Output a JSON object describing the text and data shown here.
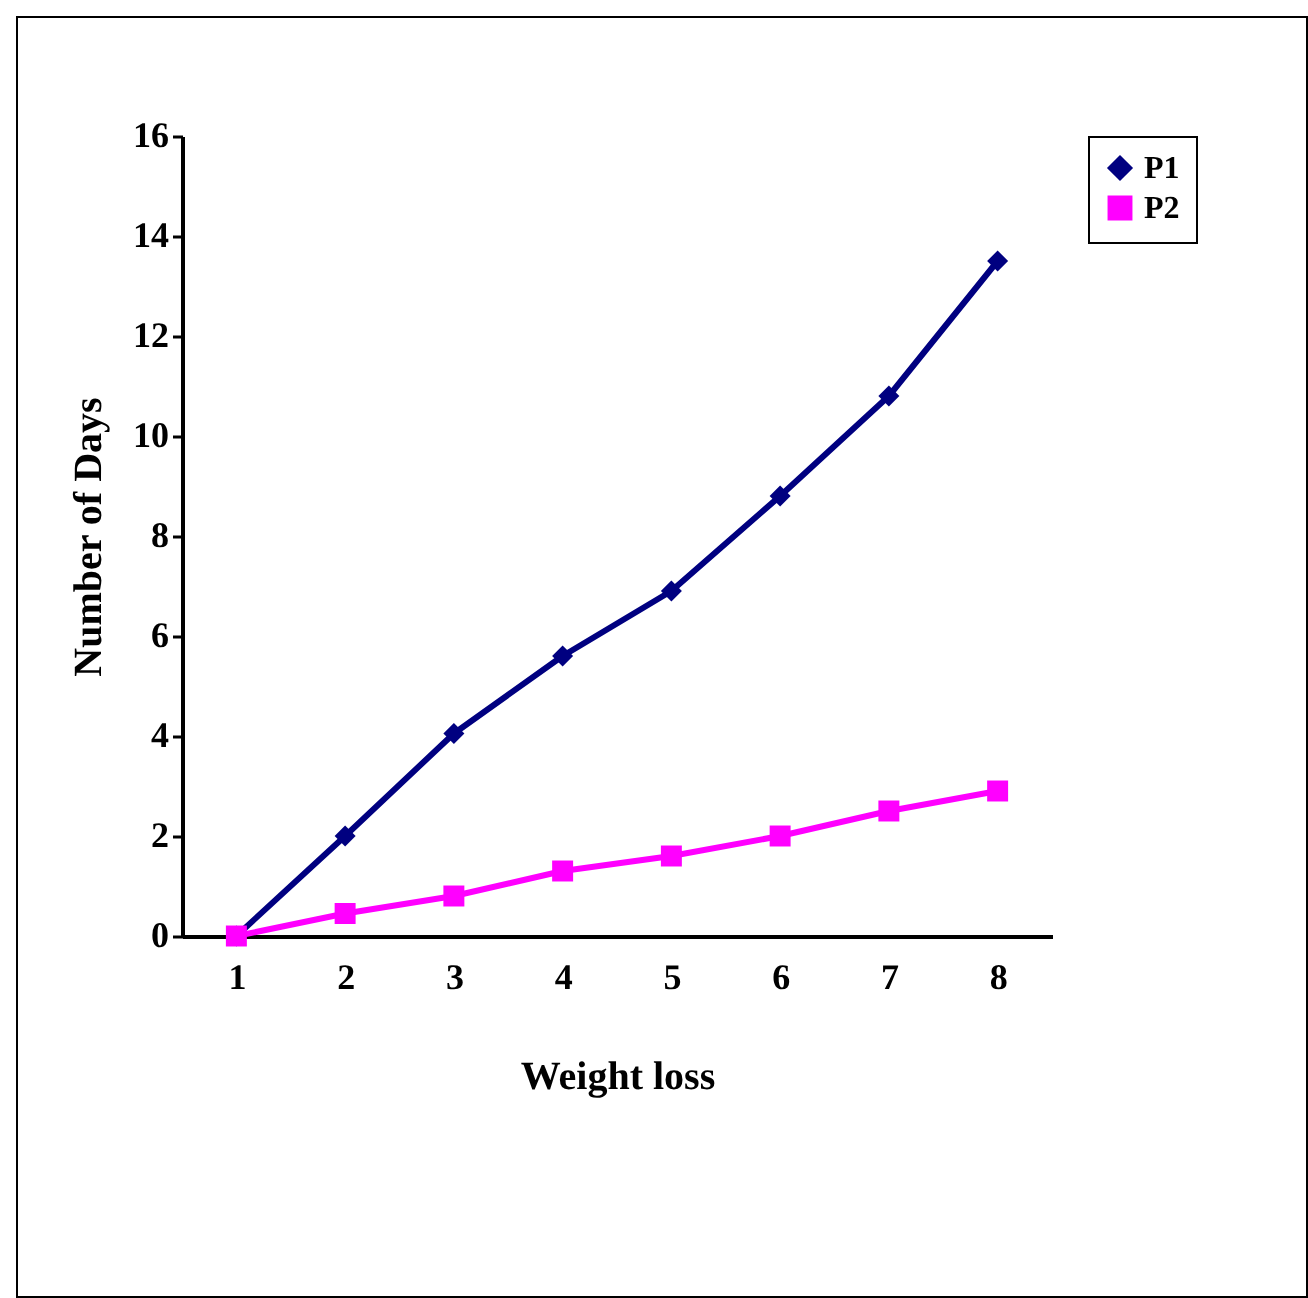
{
  "chart_data": {
    "type": "line",
    "xlabel": "Weight loss",
    "ylabel": "Number of Days",
    "categories": [
      "1",
      "2",
      "3",
      "4",
      "5",
      "6",
      "7",
      "8"
    ],
    "series": [
      {
        "name": "P1",
        "color": "#000080",
        "marker": "diamond",
        "values": [
          0,
          2,
          4.05,
          5.6,
          6.9,
          8.8,
          10.8,
          13.5
        ]
      },
      {
        "name": "P2",
        "color": "#ff00ff",
        "marker": "square",
        "values": [
          0,
          0.45,
          0.8,
          1.3,
          1.6,
          2.0,
          2.5,
          2.9
        ]
      }
    ],
    "ylim": [
      0,
      16
    ],
    "yticks": [
      0,
      2,
      4,
      6,
      8,
      10,
      12,
      14,
      16
    ],
    "grid": false,
    "legend": "right"
  }
}
